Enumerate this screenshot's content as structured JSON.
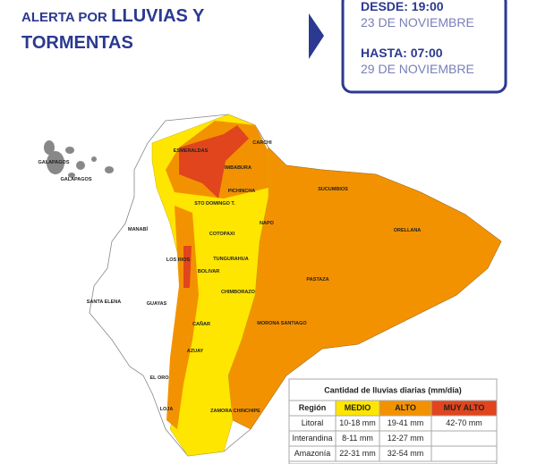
{
  "header": {
    "title_lines": [
      "ALERTA POR",
      "LLUVIAS Y",
      "TORMENTAS"
    ],
    "from_label": "DESDE: 19:00",
    "from_date": "23 DE NOVIEMBRE",
    "to_label": "HASTA: 07:00",
    "to_date": "29 DE NOVIEMBRE"
  },
  "map": {
    "labels": [
      "GALAPAGOS",
      "GALAPAGOS",
      "ESMERALDAS",
      "CARCHI",
      "IMBABURA",
      "SUCUMBIOS",
      "PICHINCHA",
      "STO DOMINGO T.",
      "NAPO",
      "ORELLANA",
      "MANABÍ",
      "COTOPAXI",
      "LOS RIOS",
      "TUNGURAHUA",
      "BOLIVAR",
      "PASTAZA",
      "SANTA ELENA",
      "GUAYAS",
      "CHIMBORAZO",
      "CAÑAR",
      "MORONA SANTIAGO",
      "AZUAY",
      "EL ORO",
      "LOJA",
      "ZAMORA CHINCHIPE"
    ]
  },
  "table": {
    "title": "Cantidad de lluvias diarias (mm/día)",
    "headers": [
      "Región",
      "MEDIO",
      "ALTO",
      "MUY ALTO"
    ],
    "rows": [
      [
        "Litoral",
        "10-18 mm",
        "19-41 mm",
        "42-70 mm"
      ],
      [
        "Interandina",
        "8-11 mm",
        "12-27 mm"
      ],
      [
        "Amazonía",
        "22-31 mm",
        "32-54 mm"
      ]
    ]
  }
}
